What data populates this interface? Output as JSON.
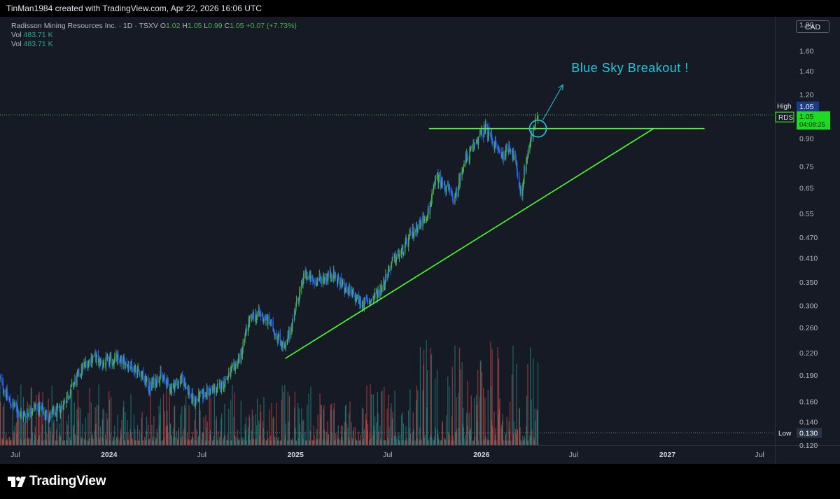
{
  "header": {
    "byline": "TinMan1984 created with TradingView.com, Apr 22, 2026 16:06 UTC"
  },
  "legend": {
    "symbol": "Radisson Mining Resources Inc. · 1D · TSXV",
    "o_label": "O",
    "o_value": "1.02",
    "h_label": "H",
    "h_value": "1.05",
    "l_label": "L",
    "l_value": "0.99",
    "c_label": "C",
    "c_value": "1.05",
    "change": "+0.07 (+7.73%)",
    "vol1_label": "Vol",
    "vol1_value": "483.71 K",
    "vol2_label": "Vol",
    "vol2_value": "483.71 K"
  },
  "currency_button": "CAD",
  "annotation": "Blue Sky Breakout !",
  "price_markers": {
    "high_label": "High",
    "high_value": "1.05",
    "ticker": "RDS",
    "last_value": "1.05",
    "countdown": "04:08:25",
    "low_label": "Low",
    "low_value": "0.130"
  },
  "colors": {
    "background": "#161a25",
    "up": "#4caf50",
    "down": "#2962ff",
    "trendline": "#4cff2b",
    "annotation": "#26c6da",
    "volume_up": "#26a69a",
    "volume_down": "#ef5350"
  },
  "chart_data": {
    "type": "candlestick",
    "symbol": "RDS",
    "interval": "1D",
    "y_scale": "log",
    "ylim": [
      0.12,
      2.0
    ],
    "y_ticks": [
      0.12,
      0.14,
      0.16,
      0.19,
      0.22,
      0.26,
      0.3,
      0.35,
      0.41,
      0.47,
      0.55,
      0.65,
      0.75,
      0.9,
      1.05,
      1.2,
      1.4,
      1.6,
      1.9
    ],
    "y_tick_labels": [
      "0.120",
      "0.140",
      "0.160",
      "0.190",
      "0.220",
      "0.260",
      "0.300",
      "0.350",
      "0.410",
      "0.470",
      "0.55",
      "0.65",
      "0.75",
      "0.90",
      "1.05",
      "1.20",
      "1.40",
      "1.60",
      "1.90"
    ],
    "x_range": [
      "2023-06-01",
      "2027-07-31"
    ],
    "x_ticks": [
      {
        "date": "2023-07-01",
        "label": "Jul"
      },
      {
        "date": "2024-01-01",
        "label": "2024"
      },
      {
        "date": "2024-07-01",
        "label": "Jul"
      },
      {
        "date": "2025-01-01",
        "label": "2025"
      },
      {
        "date": "2025-07-01",
        "label": "Jul"
      },
      {
        "date": "2026-01-01",
        "label": "2026"
      },
      {
        "date": "2026-07-01",
        "label": "Jul"
      },
      {
        "date": "2027-01-01",
        "label": "2027"
      },
      {
        "date": "2027-07-01",
        "label": "Jul"
      }
    ],
    "price_path": [
      [
        "2023-06-01",
        0.185
      ],
      [
        "2023-06-20",
        0.16
      ],
      [
        "2023-07-15",
        0.145
      ],
      [
        "2023-08-10",
        0.155
      ],
      [
        "2023-09-05",
        0.145
      ],
      [
        "2023-09-25",
        0.15
      ],
      [
        "2023-10-20",
        0.175
      ],
      [
        "2023-11-10",
        0.2
      ],
      [
        "2023-12-01",
        0.215
      ],
      [
        "2023-12-20",
        0.205
      ],
      [
        "2024-01-15",
        0.212
      ],
      [
        "2024-02-05",
        0.205
      ],
      [
        "2024-03-01",
        0.195
      ],
      [
        "2024-03-20",
        0.175
      ],
      [
        "2024-04-10",
        0.19
      ],
      [
        "2024-05-01",
        0.175
      ],
      [
        "2024-05-25",
        0.185
      ],
      [
        "2024-06-15",
        0.16
      ],
      [
        "2024-07-10",
        0.17
      ],
      [
        "2024-08-05",
        0.175
      ],
      [
        "2024-08-25",
        0.19
      ],
      [
        "2024-09-15",
        0.215
      ],
      [
        "2024-10-01",
        0.27
      ],
      [
        "2024-10-20",
        0.285
      ],
      [
        "2024-11-10",
        0.27
      ],
      [
        "2024-12-01",
        0.24
      ],
      [
        "2024-12-12",
        0.225
      ],
      [
        "2025-01-05",
        0.31
      ],
      [
        "2025-01-20",
        0.37
      ],
      [
        "2025-02-05",
        0.35
      ],
      [
        "2025-02-25",
        0.36
      ],
      [
        "2025-03-15",
        0.37
      ],
      [
        "2025-04-05",
        0.34
      ],
      [
        "2025-04-25",
        0.32
      ],
      [
        "2025-05-10",
        0.305
      ],
      [
        "2025-05-30",
        0.31
      ],
      [
        "2025-06-20",
        0.34
      ],
      [
        "2025-07-10",
        0.4
      ],
      [
        "2025-07-30",
        0.43
      ],
      [
        "2025-08-20",
        0.49
      ],
      [
        "2025-09-05",
        0.52
      ],
      [
        "2025-09-20",
        0.56
      ],
      [
        "2025-10-05",
        0.7
      ],
      [
        "2025-10-25",
        0.65
      ],
      [
        "2025-11-10",
        0.6
      ],
      [
        "2025-11-25",
        0.75
      ],
      [
        "2025-12-10",
        0.82
      ],
      [
        "2025-12-25",
        0.9
      ],
      [
        "2026-01-10",
        0.96
      ],
      [
        "2026-01-25",
        0.88
      ],
      [
        "2026-02-10",
        0.8
      ],
      [
        "2026-02-25",
        0.86
      ],
      [
        "2026-03-08",
        0.78
      ],
      [
        "2026-03-20",
        0.62
      ],
      [
        "2026-03-28",
        0.76
      ],
      [
        "2026-04-10",
        0.92
      ],
      [
        "2026-04-22",
        1.05
      ]
    ],
    "high": 1.05,
    "low": 0.13,
    "last": 1.05,
    "drawings": {
      "resistance": {
        "from": [
          "2025-09-20",
          0.96
        ],
        "to": [
          "2027-03-15",
          0.96
        ]
      },
      "support_trendline": {
        "from": [
          "2024-12-12",
          0.212
        ],
        "to": [
          "2026-12-05",
          0.96
        ]
      },
      "breakout_arrow": {
        "from": [
          "2026-04-22",
          0.96
        ],
        "to": [
          "2026-06-10",
          1.28
        ]
      }
    }
  }
}
